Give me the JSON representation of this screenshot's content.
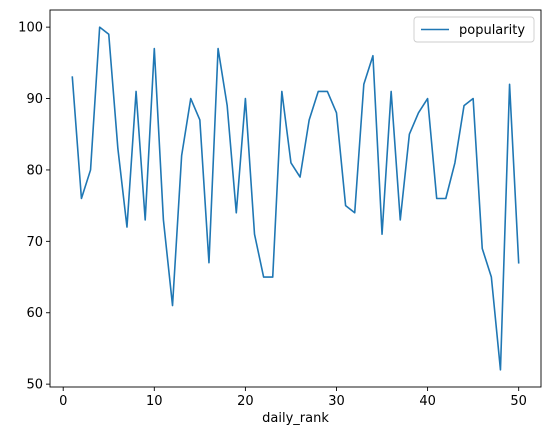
{
  "chart_data": {
    "type": "line",
    "xlabel": "daily_rank",
    "ylabel": "",
    "title": "",
    "xlim": [
      -1.45,
      52.45
    ],
    "ylim": [
      49.6,
      102.4
    ],
    "xticks": [
      0,
      10,
      20,
      30,
      40,
      50
    ],
    "yticks": [
      50,
      60,
      70,
      80,
      90,
      100
    ],
    "grid": false,
    "legend": {
      "position": "top-right"
    },
    "series": [
      {
        "name": "popularity",
        "color": "#1f77b4",
        "x": [
          1,
          2,
          3,
          4,
          5,
          6,
          7,
          8,
          9,
          10,
          11,
          12,
          13,
          14,
          15,
          16,
          17,
          18,
          19,
          20,
          21,
          22,
          23,
          24,
          25,
          26,
          27,
          28,
          29,
          30,
          31,
          32,
          33,
          34,
          35,
          36,
          37,
          38,
          39,
          40,
          41,
          42,
          43,
          44,
          45,
          46,
          47,
          48,
          49,
          50
        ],
        "y": [
          93,
          76,
          80,
          100,
          99,
          83,
          72,
          91,
          73,
          97,
          73,
          61,
          82,
          90,
          87,
          67,
          97,
          89,
          74,
          90,
          71,
          65,
          65,
          91,
          81,
          79,
          87,
          91,
          91,
          88,
          75,
          74,
          92,
          96,
          71,
          91,
          73,
          85,
          88,
          90,
          76,
          76,
          81,
          89,
          90,
          69,
          65,
          52,
          92,
          67
        ]
      }
    ]
  }
}
